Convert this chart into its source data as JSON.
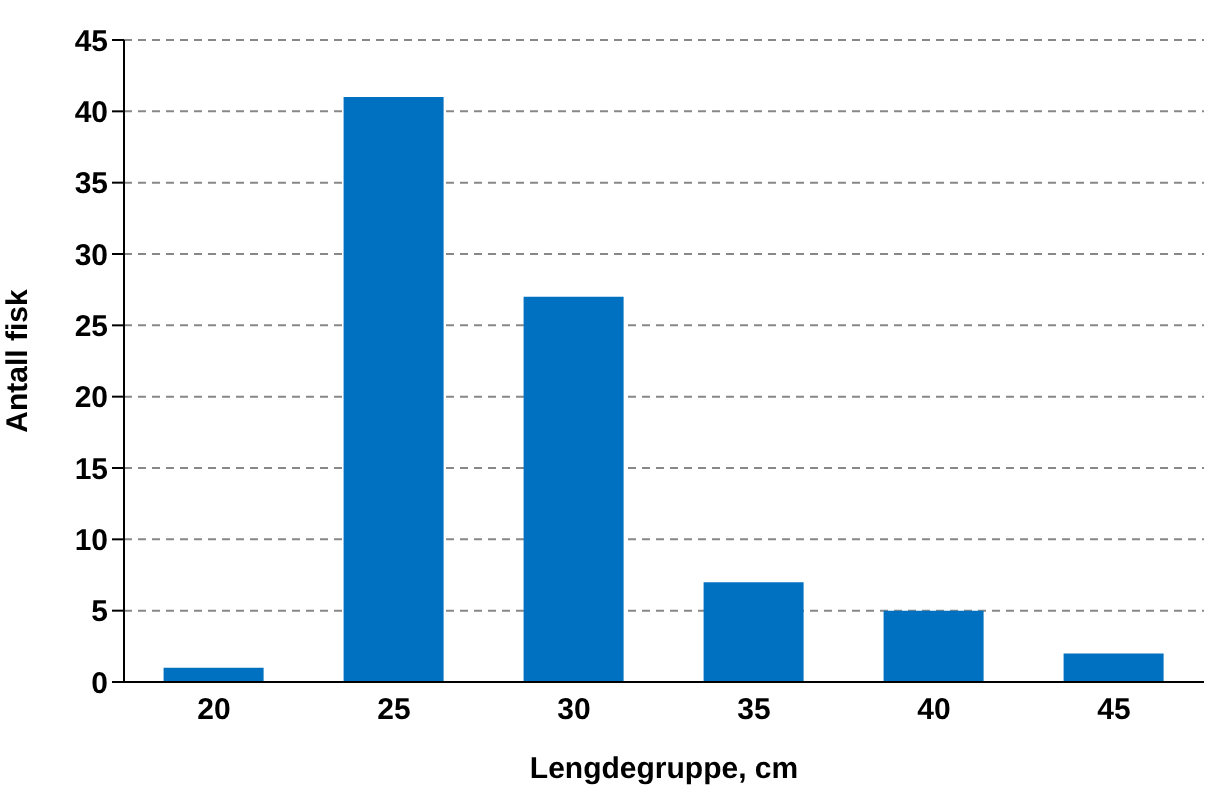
{
  "chart_data": {
    "type": "bar",
    "xlabel": "Lengdegruppe, cm",
    "ylabel": "Antall fisk",
    "categories": [
      "20",
      "25",
      "30",
      "35",
      "40",
      "45"
    ],
    "values": [
      1,
      41,
      27,
      7,
      5,
      2
    ],
    "color": "#0070c0",
    "ylim": [
      0,
      45
    ],
    "yticks": [
      0,
      5,
      10,
      15,
      20,
      25,
      30,
      35,
      40,
      45
    ],
    "grid": "y"
  }
}
